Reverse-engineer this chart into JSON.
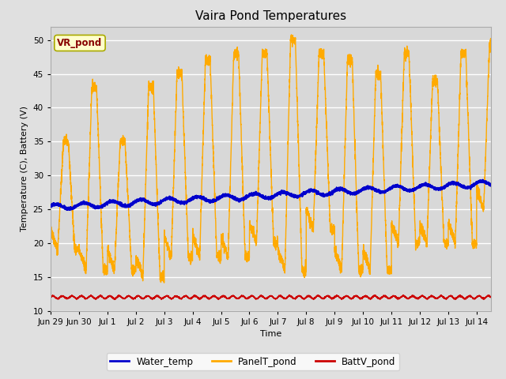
{
  "title": "Vaira Pond Temperatures",
  "xlabel": "Time",
  "ylabel": "Temperature (C), Battery (V)",
  "ylim": [
    10,
    52
  ],
  "yticks": [
    10,
    15,
    20,
    25,
    30,
    35,
    40,
    45,
    50
  ],
  "xtick_labels": [
    "Jun 29",
    "Jun 30",
    "Jul 1",
    "Jul 2",
    "Jul 3",
    "Jul 4",
    "Jul 5",
    "Jul 6",
    "Jul 7",
    "Jul 8",
    "Jul 9",
    "Jul 10",
    "Jul 11",
    "Jul 12",
    "Jul 13",
    "Jul 14"
  ],
  "water_color": "#0000cc",
  "panel_color": "#ffaa00",
  "batt_color": "#cc0000",
  "bg_color": "#e0e0e0",
  "plot_bg_color": "#d8d8d8",
  "grid_color": "#ffffff",
  "legend_label": "VR_pond",
  "legend_bg": "#ffffcc",
  "legend_edge": "#aaaa00",
  "legend_text_color": "#880000",
  "title_fontsize": 11,
  "axis_fontsize": 8,
  "tick_fontsize": 7.5
}
